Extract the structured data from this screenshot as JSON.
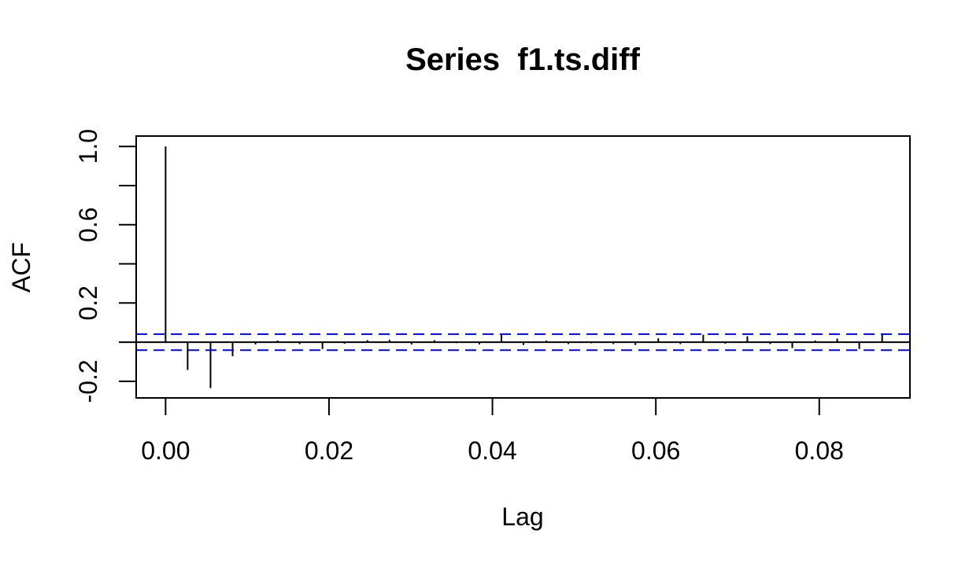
{
  "chart_data": {
    "type": "bar",
    "title": "Series  f1.ts.diff",
    "xlabel": "Lag",
    "ylabel": "ACF",
    "xlim": [
      -0.0036,
      0.0911
    ],
    "ylim": [
      -0.285,
      1.053
    ],
    "x_ticks": [
      {
        "value": 0.0,
        "label": "0.00"
      },
      {
        "value": 0.02,
        "label": "0.02"
      },
      {
        "value": 0.04,
        "label": "0.04"
      },
      {
        "value": 0.06,
        "label": "0.06"
      },
      {
        "value": 0.08,
        "label": "0.08"
      }
    ],
    "y_ticks": [
      {
        "value": -0.2,
        "label": "-0.2"
      },
      {
        "value": 0.0,
        "label": ""
      },
      {
        "value": 0.2,
        "label": "0.2"
      },
      {
        "value": 0.4,
        "label": ""
      },
      {
        "value": 0.6,
        "label": "0.6"
      },
      {
        "value": 0.8,
        "label": ""
      },
      {
        "value": 1.0,
        "label": "1.0"
      }
    ],
    "lags": [
      0.0,
      0.0027,
      0.0055,
      0.0082,
      0.011,
      0.0137,
      0.0164,
      0.0192,
      0.0219,
      0.0247,
      0.0274,
      0.0301,
      0.0329,
      0.0356,
      0.0384,
      0.0411,
      0.0438,
      0.0466,
      0.0493,
      0.0521,
      0.0548,
      0.0575,
      0.0603,
      0.063,
      0.0658,
      0.0685,
      0.0712,
      0.074,
      0.0767,
      0.0795,
      0.0822,
      0.0849,
      0.0877
    ],
    "acf": [
      1.0,
      -0.142,
      -0.235,
      -0.072,
      -0.012,
      0.008,
      -0.01,
      -0.035,
      -0.008,
      0.01,
      0.012,
      -0.012,
      0.01,
      -0.005,
      -0.012,
      0.04,
      -0.015,
      0.008,
      -0.01,
      -0.006,
      -0.01,
      -0.015,
      0.02,
      -0.01,
      0.038,
      -0.008,
      0.03,
      -0.01,
      -0.03,
      0.008,
      0.018,
      -0.035,
      0.04
    ],
    "confidence_limit": 0.041,
    "grid": false,
    "colors": {
      "bars": "#000000",
      "zero_line": "#000000",
      "confidence_lines": "#0000ee",
      "frame": "#000000"
    }
  }
}
